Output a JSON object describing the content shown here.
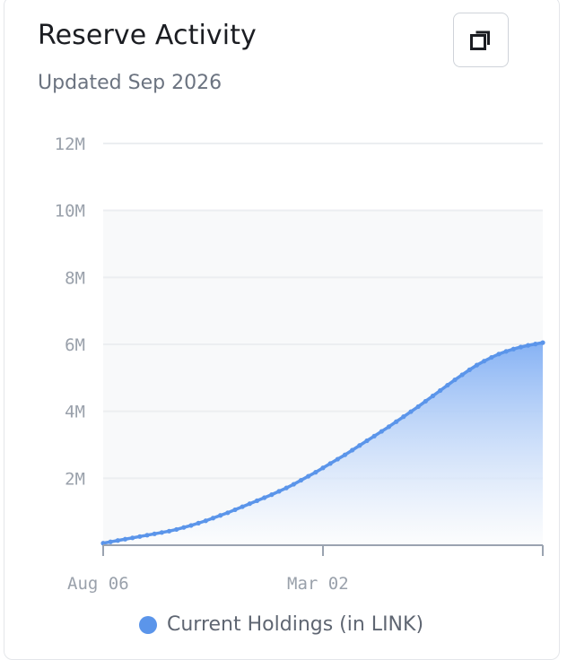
{
  "header": {
    "title": "Reserve Activity",
    "subtitle": "Updated Sep 2026"
  },
  "toolbar": {
    "copy_icon": "copy-icon"
  },
  "colors": {
    "series": "#5b95ea",
    "area_top": "#86b2f4",
    "grid": "#eceef1",
    "axis": "#9aa3b0"
  },
  "chart_data": {
    "type": "area",
    "title": "Reserve Activity",
    "xlabel": "",
    "ylabel": "",
    "ylim": [
      0,
      12000000
    ],
    "y_ticks": [
      {
        "value": 2000000,
        "label": "2M"
      },
      {
        "value": 4000000,
        "label": "4M"
      },
      {
        "value": 6000000,
        "label": "6M"
      },
      {
        "value": 8000000,
        "label": "8M"
      },
      {
        "value": 10000000,
        "label": "10M"
      },
      {
        "value": 12000000,
        "label": "12M"
      }
    ],
    "x_ticks": [
      {
        "label": "Aug 06",
        "index": 0
      },
      {
        "label": "Mar 02",
        "index": 30
      },
      {
        "label": "",
        "index": 60
      }
    ],
    "shaded_band": [
      0,
      10000000
    ],
    "grid": true,
    "legend": "bottom",
    "series": [
      {
        "name": "Current Holdings (in LINK)",
        "values": [
          60000,
          100000,
          140000,
          180000,
          220000,
          260000,
          300000,
          340000,
          380000,
          420000,
          470000,
          530000,
          590000,
          660000,
          730000,
          810000,
          890000,
          970000,
          1060000,
          1150000,
          1240000,
          1330000,
          1420000,
          1510000,
          1610000,
          1710000,
          1820000,
          1940000,
          2060000,
          2180000,
          2310000,
          2440000,
          2570000,
          2700000,
          2840000,
          2980000,
          3120000,
          3260000,
          3400000,
          3540000,
          3690000,
          3840000,
          3990000,
          4140000,
          4300000,
          4460000,
          4620000,
          4780000,
          4940000,
          5090000,
          5240000,
          5380000,
          5500000,
          5610000,
          5710000,
          5790000,
          5860000,
          5920000,
          5970000,
          6010000,
          6050000
        ]
      }
    ]
  }
}
